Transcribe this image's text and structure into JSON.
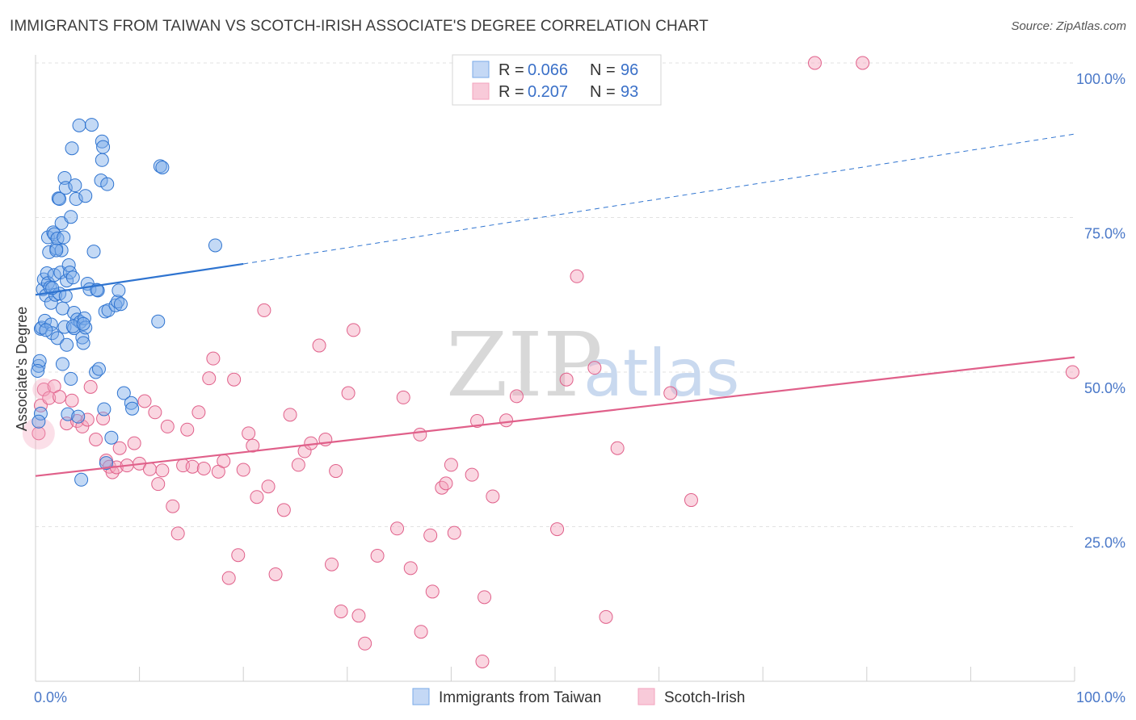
{
  "title": "IMMIGRANTS FROM TAIWAN VS SCOTCH-IRISH ASSOCIATE'S DEGREE CORRELATION CHART",
  "source": "Source: ZipAtlas.com",
  "watermark": {
    "zip": "ZIP",
    "atlas": "atlas"
  },
  "legend": {
    "r_label": "R =",
    "n_label": "N =",
    "rows": [
      {
        "r": "0.066",
        "n": "96"
      },
      {
        "r": "0.207",
        "n": "93"
      }
    ]
  },
  "chart_data": {
    "type": "scatter",
    "title": "IMMIGRANTS FROM TAIWAN VS SCOTCH-IRISH ASSOCIATE'S DEGREE CORRELATION CHART",
    "xlabel": "",
    "ylabel": "Associate's Degree",
    "xlim": [
      0,
      100
    ],
    "ylim": [
      0,
      100
    ],
    "x_tick_labels": [
      "0.0%",
      "100.0%"
    ],
    "y_ticks": [
      25,
      50,
      75,
      100
    ],
    "y_tick_labels": [
      "25.0%",
      "50.0%",
      "75.0%",
      "100.0%"
    ],
    "grid": true,
    "legend_position": "top-center",
    "colors": {
      "taiwan": "#7aaae8",
      "taiwan_line": "#2f74d0",
      "scotch": "#f3a3bd",
      "scotch_line": "#e0608a"
    },
    "series": [
      {
        "name": "Immigrants from Taiwan",
        "r": 0.066,
        "n": 96,
        "trend": {
          "x0": 0,
          "y0": 62.5,
          "x1": 20,
          "y1": 67.5,
          "dashed_to_x": 100,
          "dashed_to_y": 88.5
        },
        "points": [
          [
            0.5,
            43.3
          ],
          [
            0.3,
            51.0
          ],
          [
            0.4,
            51.8
          ],
          [
            0.5,
            57.0
          ],
          [
            0.6,
            57.2
          ],
          [
            0.7,
            63.4
          ],
          [
            0.8,
            65.0
          ],
          [
            0.9,
            58.3
          ],
          [
            1.0,
            62.4
          ],
          [
            1.1,
            66.0
          ],
          [
            1.2,
            71.8
          ],
          [
            1.2,
            64.4
          ],
          [
            1.3,
            69.4
          ],
          [
            1.4,
            63.7
          ],
          [
            1.5,
            57.7
          ],
          [
            1.5,
            61.2
          ],
          [
            1.6,
            56.3
          ],
          [
            1.7,
            72.6
          ],
          [
            1.8,
            72.3
          ],
          [
            1.8,
            65.7
          ],
          [
            1.9,
            62.5
          ],
          [
            2.0,
            70.0
          ],
          [
            2.1,
            71.6
          ],
          [
            2.1,
            55.5
          ],
          [
            2.2,
            78.1
          ],
          [
            2.3,
            78.0
          ],
          [
            2.3,
            62.7
          ],
          [
            2.4,
            66.1
          ],
          [
            2.5,
            74.1
          ],
          [
            2.5,
            69.7
          ],
          [
            2.6,
            60.3
          ],
          [
            2.6,
            51.3
          ],
          [
            2.7,
            71.8
          ],
          [
            2.8,
            81.4
          ],
          [
            2.8,
            57.3
          ],
          [
            2.9,
            79.8
          ],
          [
            3.0,
            64.8
          ],
          [
            3.0,
            54.4
          ],
          [
            3.1,
            43.2
          ],
          [
            3.2,
            67.3
          ],
          [
            3.3,
            66.1
          ],
          [
            3.4,
            75.1
          ],
          [
            3.4,
            48.9
          ],
          [
            3.5,
            86.2
          ],
          [
            3.6,
            65.3
          ],
          [
            3.7,
            59.6
          ],
          [
            3.7,
            57.1
          ],
          [
            3.8,
            80.2
          ],
          [
            3.9,
            78.0
          ],
          [
            4.0,
            58.5
          ],
          [
            4.1,
            42.8
          ],
          [
            4.2,
            89.9
          ],
          [
            4.3,
            58.1
          ],
          [
            4.4,
            32.6
          ],
          [
            4.5,
            55.6
          ],
          [
            4.6,
            54.7
          ],
          [
            4.7,
            58.7
          ],
          [
            4.8,
            78.5
          ],
          [
            4.8,
            57.2
          ],
          [
            5.0,
            64.3
          ],
          [
            5.2,
            63.4
          ],
          [
            5.4,
            90.0
          ],
          [
            5.6,
            69.5
          ],
          [
            5.8,
            50.0
          ],
          [
            6.0,
            63.2
          ],
          [
            6.1,
            50.5
          ],
          [
            6.3,
            81.0
          ],
          [
            6.4,
            84.3
          ],
          [
            6.4,
            87.3
          ],
          [
            6.5,
            86.4
          ],
          [
            6.6,
            44.0
          ],
          [
            6.7,
            59.8
          ],
          [
            6.8,
            35.3
          ],
          [
            6.9,
            80.4
          ],
          [
            7.0,
            60.0
          ],
          [
            7.3,
            39.4
          ],
          [
            7.7,
            60.8
          ],
          [
            7.9,
            61.4
          ],
          [
            8.0,
            63.2
          ],
          [
            8.2,
            61.0
          ],
          [
            8.5,
            46.6
          ],
          [
            9.2,
            45.0
          ],
          [
            9.3,
            44.1
          ],
          [
            11.8,
            58.2
          ],
          [
            12.0,
            83.3
          ],
          [
            12.2,
            83.1
          ],
          [
            17.3,
            70.5
          ],
          [
            0.2,
            50.2
          ],
          [
            0.3,
            42.0
          ],
          [
            1.0,
            56.8
          ],
          [
            1.6,
            63.6
          ],
          [
            2.0,
            69.7
          ],
          [
            2.9,
            62.3
          ],
          [
            3.6,
            57.4
          ],
          [
            4.6,
            57.8
          ],
          [
            5.9,
            63.3
          ]
        ]
      },
      {
        "name": "Scotch-Irish",
        "r": 0.207,
        "n": 93,
        "trend": {
          "x0": 0,
          "y0": 33.2,
          "x1": 100,
          "y1": 52.4
        },
        "points": [
          [
            0.3,
            40.1
          ],
          [
            0.5,
            44.6
          ],
          [
            0.8,
            47.2
          ],
          [
            1.3,
            45.8
          ],
          [
            1.8,
            47.7
          ],
          [
            2.3,
            46.0
          ],
          [
            3.0,
            41.7
          ],
          [
            3.5,
            45.4
          ],
          [
            4.0,
            42.1
          ],
          [
            4.5,
            41.2
          ],
          [
            5.0,
            42.3
          ],
          [
            5.3,
            47.6
          ],
          [
            5.8,
            39.1
          ],
          [
            6.5,
            42.5
          ],
          [
            6.8,
            35.7
          ],
          [
            7.1,
            34.7
          ],
          [
            7.4,
            33.8
          ],
          [
            7.8,
            34.6
          ],
          [
            8.1,
            37.7
          ],
          [
            8.8,
            34.9
          ],
          [
            9.5,
            38.5
          ],
          [
            10.0,
            35.2
          ],
          [
            10.5,
            45.3
          ],
          [
            11.0,
            34.3
          ],
          [
            11.5,
            43.5
          ],
          [
            11.8,
            31.9
          ],
          [
            12.2,
            34.1
          ],
          [
            12.7,
            41.2
          ],
          [
            13.2,
            28.3
          ],
          [
            13.7,
            23.9
          ],
          [
            14.2,
            34.9
          ],
          [
            14.6,
            40.7
          ],
          [
            15.1,
            34.7
          ],
          [
            15.7,
            43.5
          ],
          [
            16.2,
            34.4
          ],
          [
            16.7,
            49.0
          ],
          [
            17.1,
            52.2
          ],
          [
            17.6,
            33.9
          ],
          [
            18.1,
            35.6
          ],
          [
            18.6,
            16.7
          ],
          [
            19.1,
            48.8
          ],
          [
            19.5,
            20.4
          ],
          [
            20.0,
            34.2
          ],
          [
            20.5,
            40.1
          ],
          [
            20.9,
            38.1
          ],
          [
            21.3,
            29.8
          ],
          [
            22.0,
            60.0
          ],
          [
            22.4,
            31.5
          ],
          [
            23.1,
            17.3
          ],
          [
            23.9,
            27.7
          ],
          [
            24.5,
            43.1
          ],
          [
            25.3,
            35.0
          ],
          [
            25.9,
            37.2
          ],
          [
            26.5,
            38.5
          ],
          [
            27.3,
            54.3
          ],
          [
            27.9,
            39.1
          ],
          [
            28.5,
            18.9
          ],
          [
            28.9,
            34.0
          ],
          [
            29.4,
            11.3
          ],
          [
            30.1,
            46.6
          ],
          [
            30.6,
            56.8
          ],
          [
            31.1,
            10.6
          ],
          [
            31.7,
            6.1
          ],
          [
            32.9,
            20.3
          ],
          [
            34.8,
            24.7
          ],
          [
            35.4,
            45.9
          ],
          [
            36.1,
            18.3
          ],
          [
            37.1,
            8.0
          ],
          [
            37.0,
            39.9
          ],
          [
            38.0,
            23.6
          ],
          [
            38.2,
            14.5
          ],
          [
            39.1,
            31.3
          ],
          [
            39.5,
            32.0
          ],
          [
            40.0,
            35.0
          ],
          [
            40.3,
            24.0
          ],
          [
            42.0,
            33.4
          ],
          [
            42.5,
            42.1
          ],
          [
            43.0,
            3.2
          ],
          [
            43.2,
            13.6
          ],
          [
            44.0,
            29.9
          ],
          [
            45.3,
            42.2
          ],
          [
            46.3,
            46.1
          ],
          [
            50.2,
            24.6
          ],
          [
            51.1,
            48.8
          ],
          [
            52.1,
            65.5
          ],
          [
            53.8,
            50.7
          ],
          [
            54.9,
            10.4
          ],
          [
            56.0,
            37.7
          ],
          [
            61.1,
            46.6
          ],
          [
            63.1,
            29.3
          ],
          [
            75.0,
            100.0
          ],
          [
            79.6,
            100.0
          ],
          [
            99.8,
            50.0
          ]
        ]
      }
    ]
  },
  "bottom_legend": [
    {
      "label": "Immigrants from Taiwan"
    },
    {
      "label": "Scotch-Irish"
    }
  ]
}
